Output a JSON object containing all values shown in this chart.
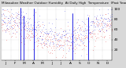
{
  "title": "Milwaukee Weather Outdoor Humidity At Daily High Temperature (Past Year)",
  "bg_color": "#d8d8d8",
  "plot_bg_color": "#ffffff",
  "ylim": [
    0,
    105
  ],
  "yticks": [
    20,
    40,
    60,
    80,
    100
  ],
  "n_points": 365,
  "blue_color": "#0000dd",
  "red_color": "#dd0000",
  "spike_indices": [
    62,
    73,
    108,
    235,
    285
  ],
  "spike_values": [
    103,
    88,
    102,
    92,
    85
  ],
  "grid_color": "#999999",
  "title_fontsize": 3.8,
  "tick_fontsize": 3.2,
  "seed": 42
}
